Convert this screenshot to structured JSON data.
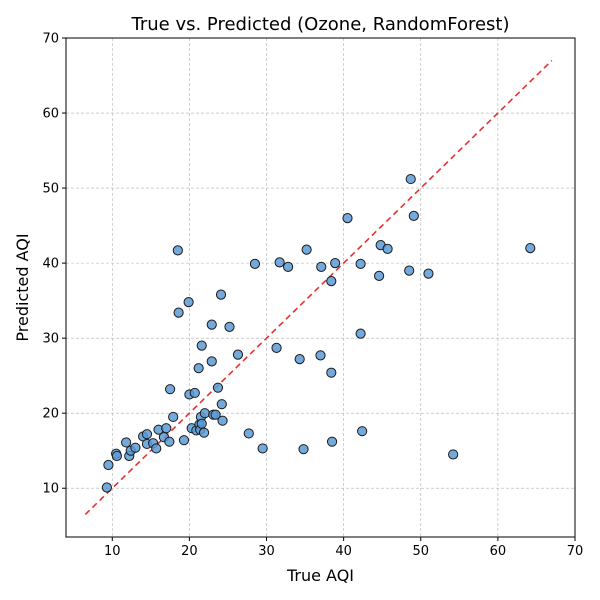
{
  "chart_data": {
    "type": "scatter",
    "title": "True vs. Predicted (Ozone, RandomForest)",
    "xlabel": "True AQI",
    "ylabel": "Predicted AQI",
    "xlim": [
      4,
      70
    ],
    "ylim": [
      3.5,
      70
    ],
    "xticks": [
      10,
      20,
      30,
      40,
      50,
      60,
      70
    ],
    "yticks": [
      10,
      20,
      30,
      40,
      50,
      60,
      70
    ],
    "grid": true,
    "reference_line": {
      "x": [
        6.5,
        67
      ],
      "y": [
        6.5,
        67
      ],
      "color": "#e8312f",
      "style": "dashed"
    },
    "point_color": "#5b9bd5",
    "point_edge": "#1a1a1a",
    "points": [
      [
        9.3,
        10.1
      ],
      [
        9.5,
        13.1
      ],
      [
        10.5,
        14.6
      ],
      [
        10.6,
        14.3
      ],
      [
        11.8,
        16.1
      ],
      [
        12.2,
        14.3
      ],
      [
        12.4,
        15.0
      ],
      [
        13.0,
        15.4
      ],
      [
        14.0,
        16.9
      ],
      [
        14.5,
        17.2
      ],
      [
        14.5,
        15.9
      ],
      [
        15.3,
        16.0
      ],
      [
        15.7,
        15.3
      ],
      [
        16.0,
        17.8
      ],
      [
        16.7,
        16.8
      ],
      [
        17.0,
        18.0
      ],
      [
        17.4,
        16.2
      ],
      [
        17.5,
        23.2
      ],
      [
        17.9,
        19.5
      ],
      [
        18.5,
        41.7
      ],
      [
        18.6,
        33.4
      ],
      [
        19.3,
        16.4
      ],
      [
        19.9,
        34.8
      ],
      [
        20.0,
        22.5
      ],
      [
        20.3,
        18.0
      ],
      [
        20.7,
        22.7
      ],
      [
        20.9,
        17.7
      ],
      [
        21.2,
        26.0
      ],
      [
        21.3,
        18.5
      ],
      [
        21.4,
        17.8
      ],
      [
        21.5,
        19.5
      ],
      [
        21.6,
        29.0
      ],
      [
        21.6,
        18.6
      ],
      [
        21.9,
        17.4
      ],
      [
        22.0,
        20.0
      ],
      [
        22.9,
        31.8
      ],
      [
        22.9,
        26.9
      ],
      [
        23.1,
        19.8
      ],
      [
        23.4,
        19.8
      ],
      [
        23.7,
        23.4
      ],
      [
        24.1,
        35.8
      ],
      [
        24.2,
        21.2
      ],
      [
        24.3,
        19.0
      ],
      [
        25.2,
        31.5
      ],
      [
        26.3,
        27.8
      ],
      [
        27.7,
        17.3
      ],
      [
        28.5,
        39.9
      ],
      [
        29.5,
        15.3
      ],
      [
        31.3,
        28.7
      ],
      [
        31.7,
        40.1
      ],
      [
        32.8,
        39.5
      ],
      [
        34.3,
        27.2
      ],
      [
        34.8,
        15.2
      ],
      [
        35.2,
        41.8
      ],
      [
        37.0,
        27.7
      ],
      [
        37.1,
        39.5
      ],
      [
        38.4,
        37.6
      ],
      [
        38.4,
        25.4
      ],
      [
        38.5,
        16.2
      ],
      [
        38.9,
        40.0
      ],
      [
        40.5,
        46.0
      ],
      [
        42.2,
        39.9
      ],
      [
        42.2,
        30.6
      ],
      [
        42.4,
        17.6
      ],
      [
        44.6,
        38.3
      ],
      [
        44.8,
        42.4
      ],
      [
        45.7,
        41.9
      ],
      [
        48.5,
        39.0
      ],
      [
        48.7,
        51.2
      ],
      [
        49.1,
        46.3
      ],
      [
        51.0,
        38.6
      ],
      [
        54.2,
        14.5
      ],
      [
        64.2,
        42.0
      ]
    ]
  }
}
